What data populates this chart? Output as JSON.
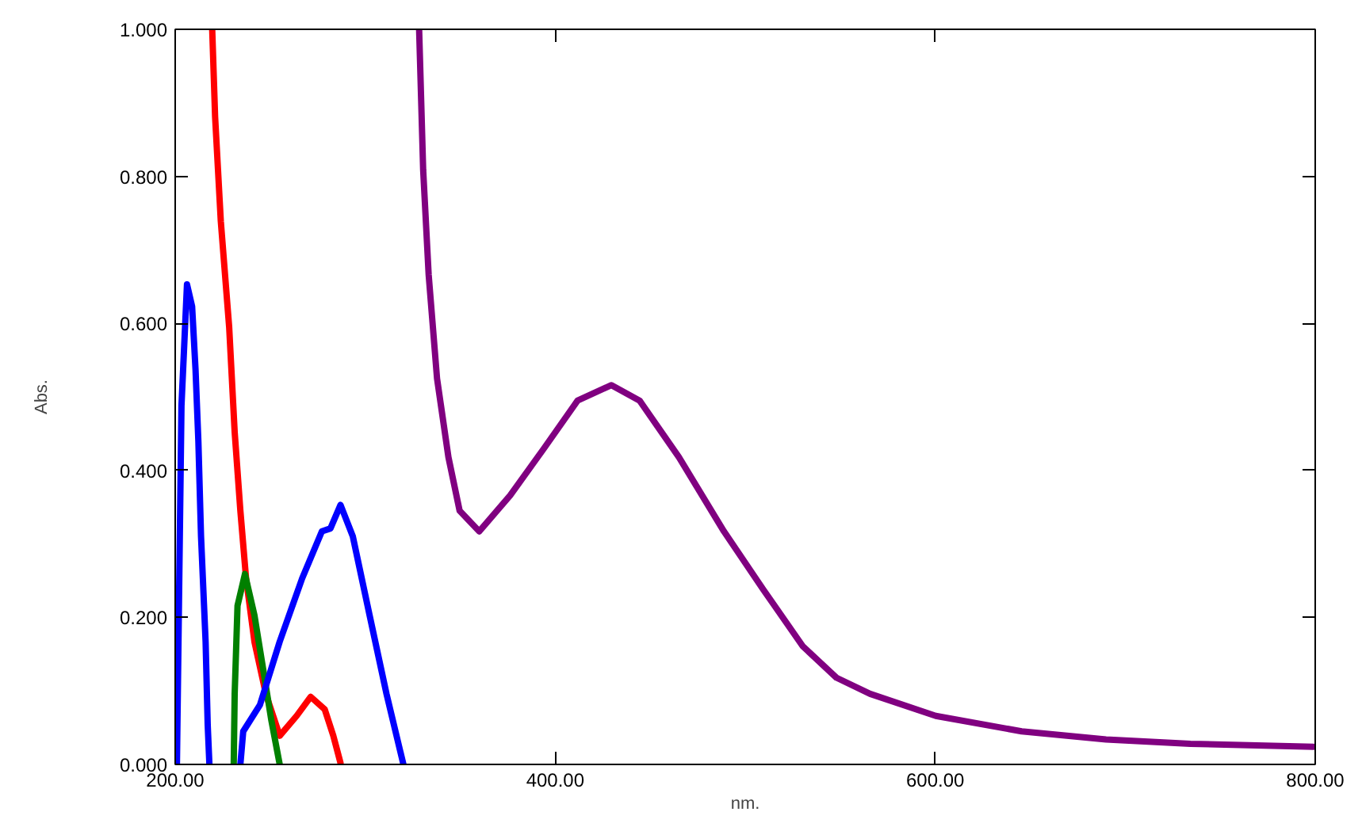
{
  "chart_data": {
    "type": "line",
    "xlabel": "nm.",
    "ylabel": "Abs.",
    "xlim": [
      200,
      800
    ],
    "ylim": [
      0,
      1
    ],
    "xticks": [
      {
        "value": 200,
        "label": "200.00"
      },
      {
        "value": 400,
        "label": "400.00"
      },
      {
        "value": 600,
        "label": "600.00"
      },
      {
        "value": 800,
        "label": "800.00"
      }
    ],
    "yticks": [
      {
        "value": 0,
        "label": "0.000"
      },
      {
        "value": 0.2,
        "label": "0.200"
      },
      {
        "value": 0.4,
        "label": "0.400"
      },
      {
        "value": 0.6,
        "label": "0.600"
      },
      {
        "value": 0.8,
        "label": "0.800"
      },
      {
        "value": 1,
        "label": "1.000"
      }
    ],
    "grid": false,
    "line_style": "solid",
    "series": [
      {
        "color": "#0000ff",
        "x": [
          200.0,
          200.9,
          203.3,
          206.2,
          208.9,
          210.7,
          212.2,
          213.6,
          216.0,
          217.1,
          218.0
        ],
        "values": [
          0,
          0.0,
          0.488,
          0.653,
          0.623,
          0.537,
          0.439,
          0.31,
          0.167,
          0.054,
          0
        ]
      },
      {
        "color": "#ff0000",
        "x": [
          219.5,
          221.0,
          224.0,
          228.4,
          231.3,
          234.3,
          237.3,
          241.7,
          247.7,
          255.0,
          263.9,
          271.3,
          278.7,
          283.2,
          287.0
        ],
        "values": [
          0.998,
          0.881,
          0.739,
          0.595,
          0.452,
          0.345,
          0.253,
          0.167,
          0.096,
          0.039,
          0.066,
          0.092,
          0.075,
          0.039,
          0.002
        ]
      },
      {
        "color": "#008000",
        "x": [
          230.8,
          231.3,
          232.8,
          236.7,
          241.7,
          246.2,
          250.6,
          255.0
        ],
        "values": [
          0,
          0.096,
          0.216,
          0.259,
          0.203,
          0.131,
          0.06,
          0
        ]
      },
      {
        "color": "#0000ff",
        "x": [
          234.3,
          235.8,
          244.6,
          255.0,
          266.8,
          277.2,
          281.7,
          287.0,
          293.5,
          302.3,
          311.2,
          320.1
        ],
        "values": [
          0,
          0.045,
          0.081,
          0.167,
          0.253,
          0.317,
          0.321,
          0.353,
          0.31,
          0.203,
          0.096,
          0
        ]
      },
      {
        "color": "#800080",
        "x": [
          328.4,
          330.5,
          333.4,
          337.8,
          343.8,
          349.7,
          360.0,
          376.3,
          394.1,
          411.8,
          429.6,
          444.4,
          465.1,
          488.8,
          509.5,
          530.2,
          548.0,
          565.7,
          600.3,
          645.5,
          689.9,
          734.3,
          799.1
        ],
        "values": [
          0.998,
          0.809,
          0.666,
          0.525,
          0.418,
          0.345,
          0.317,
          0.366,
          0.43,
          0.495,
          0.516,
          0.495,
          0.418,
          0.317,
          0.238,
          0.161,
          0.118,
          0.096,
          0.066,
          0.045,
          0.034,
          0.028,
          0.024
        ]
      }
    ]
  }
}
